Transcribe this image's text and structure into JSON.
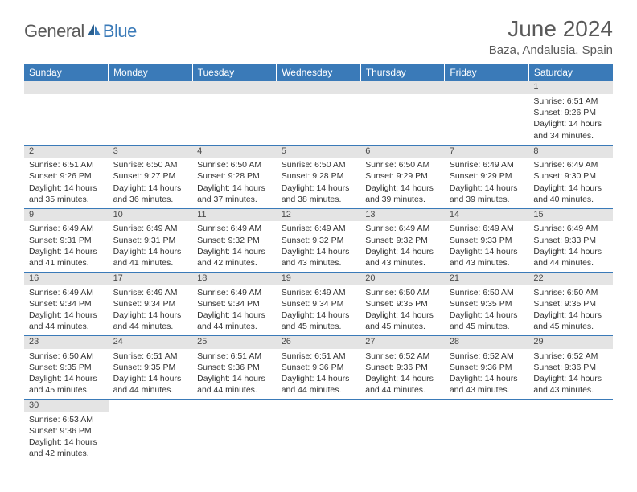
{
  "logo": {
    "main": "General",
    "sub": "Blue"
  },
  "title": "June 2024",
  "location": "Baza, Andalusia, Spain",
  "header_bg": "#3a7ab8",
  "daynum_bg": "#e4e4e4",
  "border_color": "#3a7ab8",
  "weekdays": [
    "Sunday",
    "Monday",
    "Tuesday",
    "Wednesday",
    "Thursday",
    "Friday",
    "Saturday"
  ],
  "weeks": [
    [
      null,
      null,
      null,
      null,
      null,
      null,
      {
        "n": "1",
        "sr": "6:51 AM",
        "ss": "9:26 PM",
        "dl": "14 hours and 34 minutes."
      }
    ],
    [
      {
        "n": "2",
        "sr": "6:51 AM",
        "ss": "9:26 PM",
        "dl": "14 hours and 35 minutes."
      },
      {
        "n": "3",
        "sr": "6:50 AM",
        "ss": "9:27 PM",
        "dl": "14 hours and 36 minutes."
      },
      {
        "n": "4",
        "sr": "6:50 AM",
        "ss": "9:28 PM",
        "dl": "14 hours and 37 minutes."
      },
      {
        "n": "5",
        "sr": "6:50 AM",
        "ss": "9:28 PM",
        "dl": "14 hours and 38 minutes."
      },
      {
        "n": "6",
        "sr": "6:50 AM",
        "ss": "9:29 PM",
        "dl": "14 hours and 39 minutes."
      },
      {
        "n": "7",
        "sr": "6:49 AM",
        "ss": "9:29 PM",
        "dl": "14 hours and 39 minutes."
      },
      {
        "n": "8",
        "sr": "6:49 AM",
        "ss": "9:30 PM",
        "dl": "14 hours and 40 minutes."
      }
    ],
    [
      {
        "n": "9",
        "sr": "6:49 AM",
        "ss": "9:31 PM",
        "dl": "14 hours and 41 minutes."
      },
      {
        "n": "10",
        "sr": "6:49 AM",
        "ss": "9:31 PM",
        "dl": "14 hours and 41 minutes."
      },
      {
        "n": "11",
        "sr": "6:49 AM",
        "ss": "9:32 PM",
        "dl": "14 hours and 42 minutes."
      },
      {
        "n": "12",
        "sr": "6:49 AM",
        "ss": "9:32 PM",
        "dl": "14 hours and 43 minutes."
      },
      {
        "n": "13",
        "sr": "6:49 AM",
        "ss": "9:32 PM",
        "dl": "14 hours and 43 minutes."
      },
      {
        "n": "14",
        "sr": "6:49 AM",
        "ss": "9:33 PM",
        "dl": "14 hours and 43 minutes."
      },
      {
        "n": "15",
        "sr": "6:49 AM",
        "ss": "9:33 PM",
        "dl": "14 hours and 44 minutes."
      }
    ],
    [
      {
        "n": "16",
        "sr": "6:49 AM",
        "ss": "9:34 PM",
        "dl": "14 hours and 44 minutes."
      },
      {
        "n": "17",
        "sr": "6:49 AM",
        "ss": "9:34 PM",
        "dl": "14 hours and 44 minutes."
      },
      {
        "n": "18",
        "sr": "6:49 AM",
        "ss": "9:34 PM",
        "dl": "14 hours and 44 minutes."
      },
      {
        "n": "19",
        "sr": "6:49 AM",
        "ss": "9:34 PM",
        "dl": "14 hours and 45 minutes."
      },
      {
        "n": "20",
        "sr": "6:50 AM",
        "ss": "9:35 PM",
        "dl": "14 hours and 45 minutes."
      },
      {
        "n": "21",
        "sr": "6:50 AM",
        "ss": "9:35 PM",
        "dl": "14 hours and 45 minutes."
      },
      {
        "n": "22",
        "sr": "6:50 AM",
        "ss": "9:35 PM",
        "dl": "14 hours and 45 minutes."
      }
    ],
    [
      {
        "n": "23",
        "sr": "6:50 AM",
        "ss": "9:35 PM",
        "dl": "14 hours and 45 minutes."
      },
      {
        "n": "24",
        "sr": "6:51 AM",
        "ss": "9:35 PM",
        "dl": "14 hours and 44 minutes."
      },
      {
        "n": "25",
        "sr": "6:51 AM",
        "ss": "9:36 PM",
        "dl": "14 hours and 44 minutes."
      },
      {
        "n": "26",
        "sr": "6:51 AM",
        "ss": "9:36 PM",
        "dl": "14 hours and 44 minutes."
      },
      {
        "n": "27",
        "sr": "6:52 AM",
        "ss": "9:36 PM",
        "dl": "14 hours and 44 minutes."
      },
      {
        "n": "28",
        "sr": "6:52 AM",
        "ss": "9:36 PM",
        "dl": "14 hours and 43 minutes."
      },
      {
        "n": "29",
        "sr": "6:52 AM",
        "ss": "9:36 PM",
        "dl": "14 hours and 43 minutes."
      }
    ],
    [
      {
        "n": "30",
        "sr": "6:53 AM",
        "ss": "9:36 PM",
        "dl": "14 hours and 42 minutes."
      },
      null,
      null,
      null,
      null,
      null,
      null
    ]
  ],
  "labels": {
    "sunrise": "Sunrise:",
    "sunset": "Sunset:",
    "daylight": "Daylight:"
  }
}
